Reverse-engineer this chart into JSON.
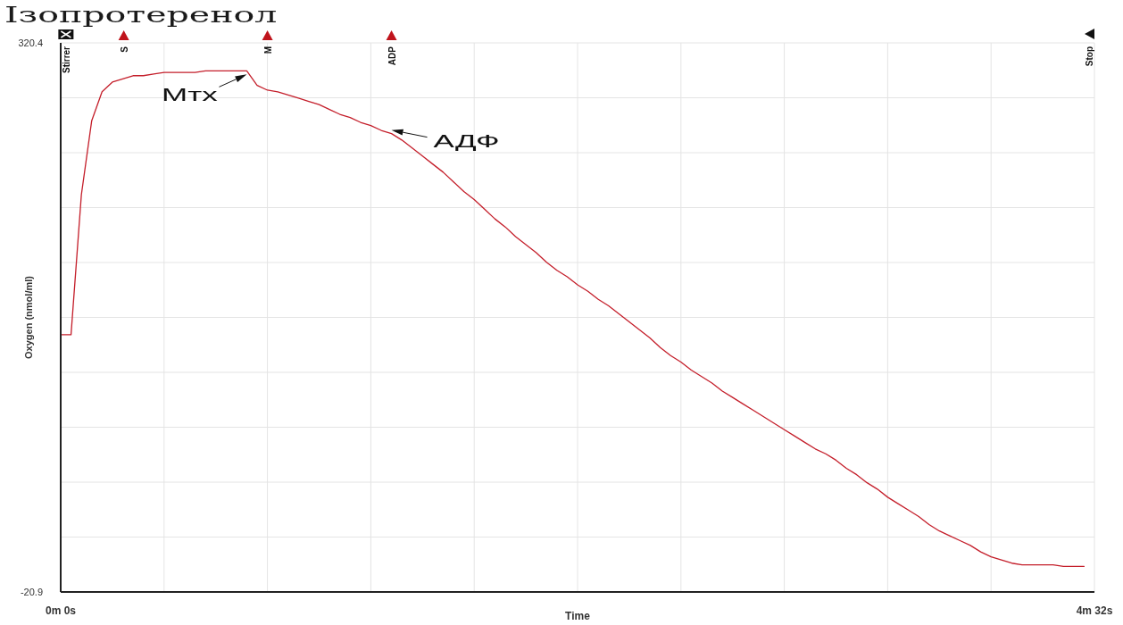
{
  "chart_data": {
    "type": "line",
    "title": "Ізопротеренол",
    "xlabel": "Time",
    "ylabel": "Oxygen (nmol/ml)",
    "categories": [
      "0m 0s",
      null,
      null,
      null,
      null,
      null,
      null,
      null,
      null,
      null,
      null,
      null,
      null,
      null,
      null,
      null,
      null,
      null,
      null,
      null,
      null,
      null,
      null,
      null,
      null,
      null,
      null,
      null,
      null,
      null,
      null,
      null,
      null,
      null,
      null,
      null,
      null,
      null,
      null,
      null,
      null,
      null,
      null,
      null,
      null,
      null,
      null,
      null,
      null,
      null,
      null,
      null,
      null,
      null,
      null,
      null,
      null,
      null,
      null,
      null,
      null,
      null,
      null,
      null,
      null,
      null,
      null,
      null,
      null,
      null,
      null,
      null,
      null,
      null,
      null,
      null,
      null,
      null,
      null,
      null,
      null,
      null,
      null,
      null,
      null,
      null,
      null,
      null,
      null,
      null,
      null,
      null,
      null,
      null,
      null,
      null,
      null,
      null,
      null,
      null,
      "4m 32s"
    ],
    "series": [
      {
        "color": "#c41e2a",
        "values": [
          139,
          139,
          226,
          272,
          290,
          296,
          298,
          300,
          300,
          301,
          302,
          302,
          302,
          302,
          303,
          303,
          303,
          303,
          303,
          294,
          291,
          290,
          288,
          286,
          284,
          282,
          279,
          276,
          274,
          271,
          269,
          266,
          264,
          260,
          255,
          250,
          245,
          240,
          234,
          228,
          223,
          217,
          211,
          206,
          200,
          195,
          190,
          184,
          179,
          175,
          170,
          166,
          161,
          157,
          152,
          147,
          142,
          137,
          131,
          126,
          122,
          117,
          113,
          109,
          104,
          100,
          96,
          92,
          88,
          84,
          80,
          76,
          72,
          68,
          65,
          61,
          56,
          52,
          47,
          43,
          38,
          34,
          30,
          26,
          21,
          17,
          14,
          11,
          8,
          4,
          1,
          -1,
          -3,
          -4,
          -4,
          -4,
          -4,
          -5,
          -5,
          -5,
          null
        ]
      }
    ],
    "ylim": [
      -20.9,
      320.4
    ],
    "yticks": [
      -20.9,
      {
        "value": 13.23,
        "label": null
      },
      {
        "value": 47.36,
        "label": null
      },
      {
        "value": 81.49,
        "label": null
      },
      {
        "value": 115.62,
        "label": null
      },
      {
        "value": 149.75,
        "label": null
      },
      {
        "value": 183.88,
        "label": null
      },
      {
        "value": 218.01,
        "label": null
      },
      {
        "value": 252.14,
        "label": null
      },
      {
        "value": 286.27,
        "label": null
      },
      320.4
    ],
    "grid": true,
    "marker": "none",
    "line_style": "solid",
    "annotations": [
      "Stirrer",
      "S",
      "M",
      "ADP",
      "Stop",
      "Мтх",
      "АДФ"
    ]
  }
}
